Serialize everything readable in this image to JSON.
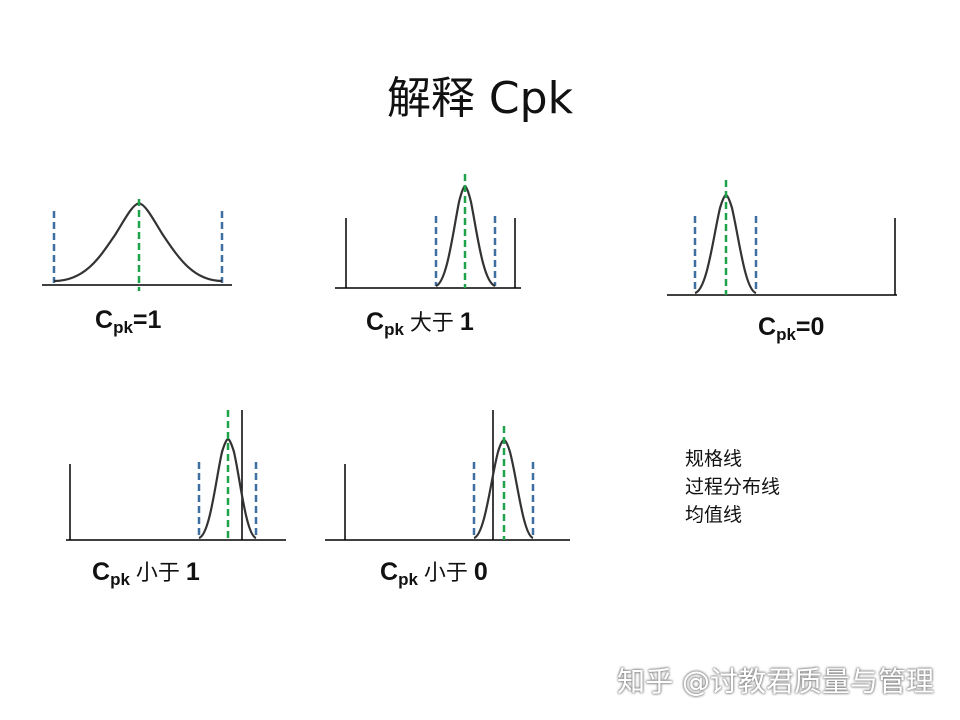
{
  "title": "解释 Cpk",
  "panels": [
    {
      "id": "p1",
      "cap_c": "C",
      "cap_sub": "pk",
      "cap_mid": "",
      "cap_tail": "=1"
    },
    {
      "id": "p2",
      "cap_c": "C",
      "cap_sub": "pk",
      "cap_mid": "大于",
      "cap_tail": "1"
    },
    {
      "id": "p3",
      "cap_c": "C",
      "cap_sub": "pk",
      "cap_mid": "",
      "cap_tail": "=0"
    },
    {
      "id": "p4",
      "cap_c": "C",
      "cap_sub": "pk",
      "cap_mid": "小于",
      "cap_tail": "1"
    },
    {
      "id": "p5",
      "cap_c": "C",
      "cap_sub": "pk",
      "cap_mid": "小于",
      "cap_tail": "0"
    }
  ],
  "legend": {
    "spec_line": "规格线",
    "process_line": "过程分布线",
    "mean_line": "均值线"
  },
  "colors": {
    "spec": "#000000",
    "process": "#3d6fa0",
    "mean": "#1fa34a",
    "curve": "#333333"
  },
  "watermark": "知乎 @讨教君质量与管理"
}
